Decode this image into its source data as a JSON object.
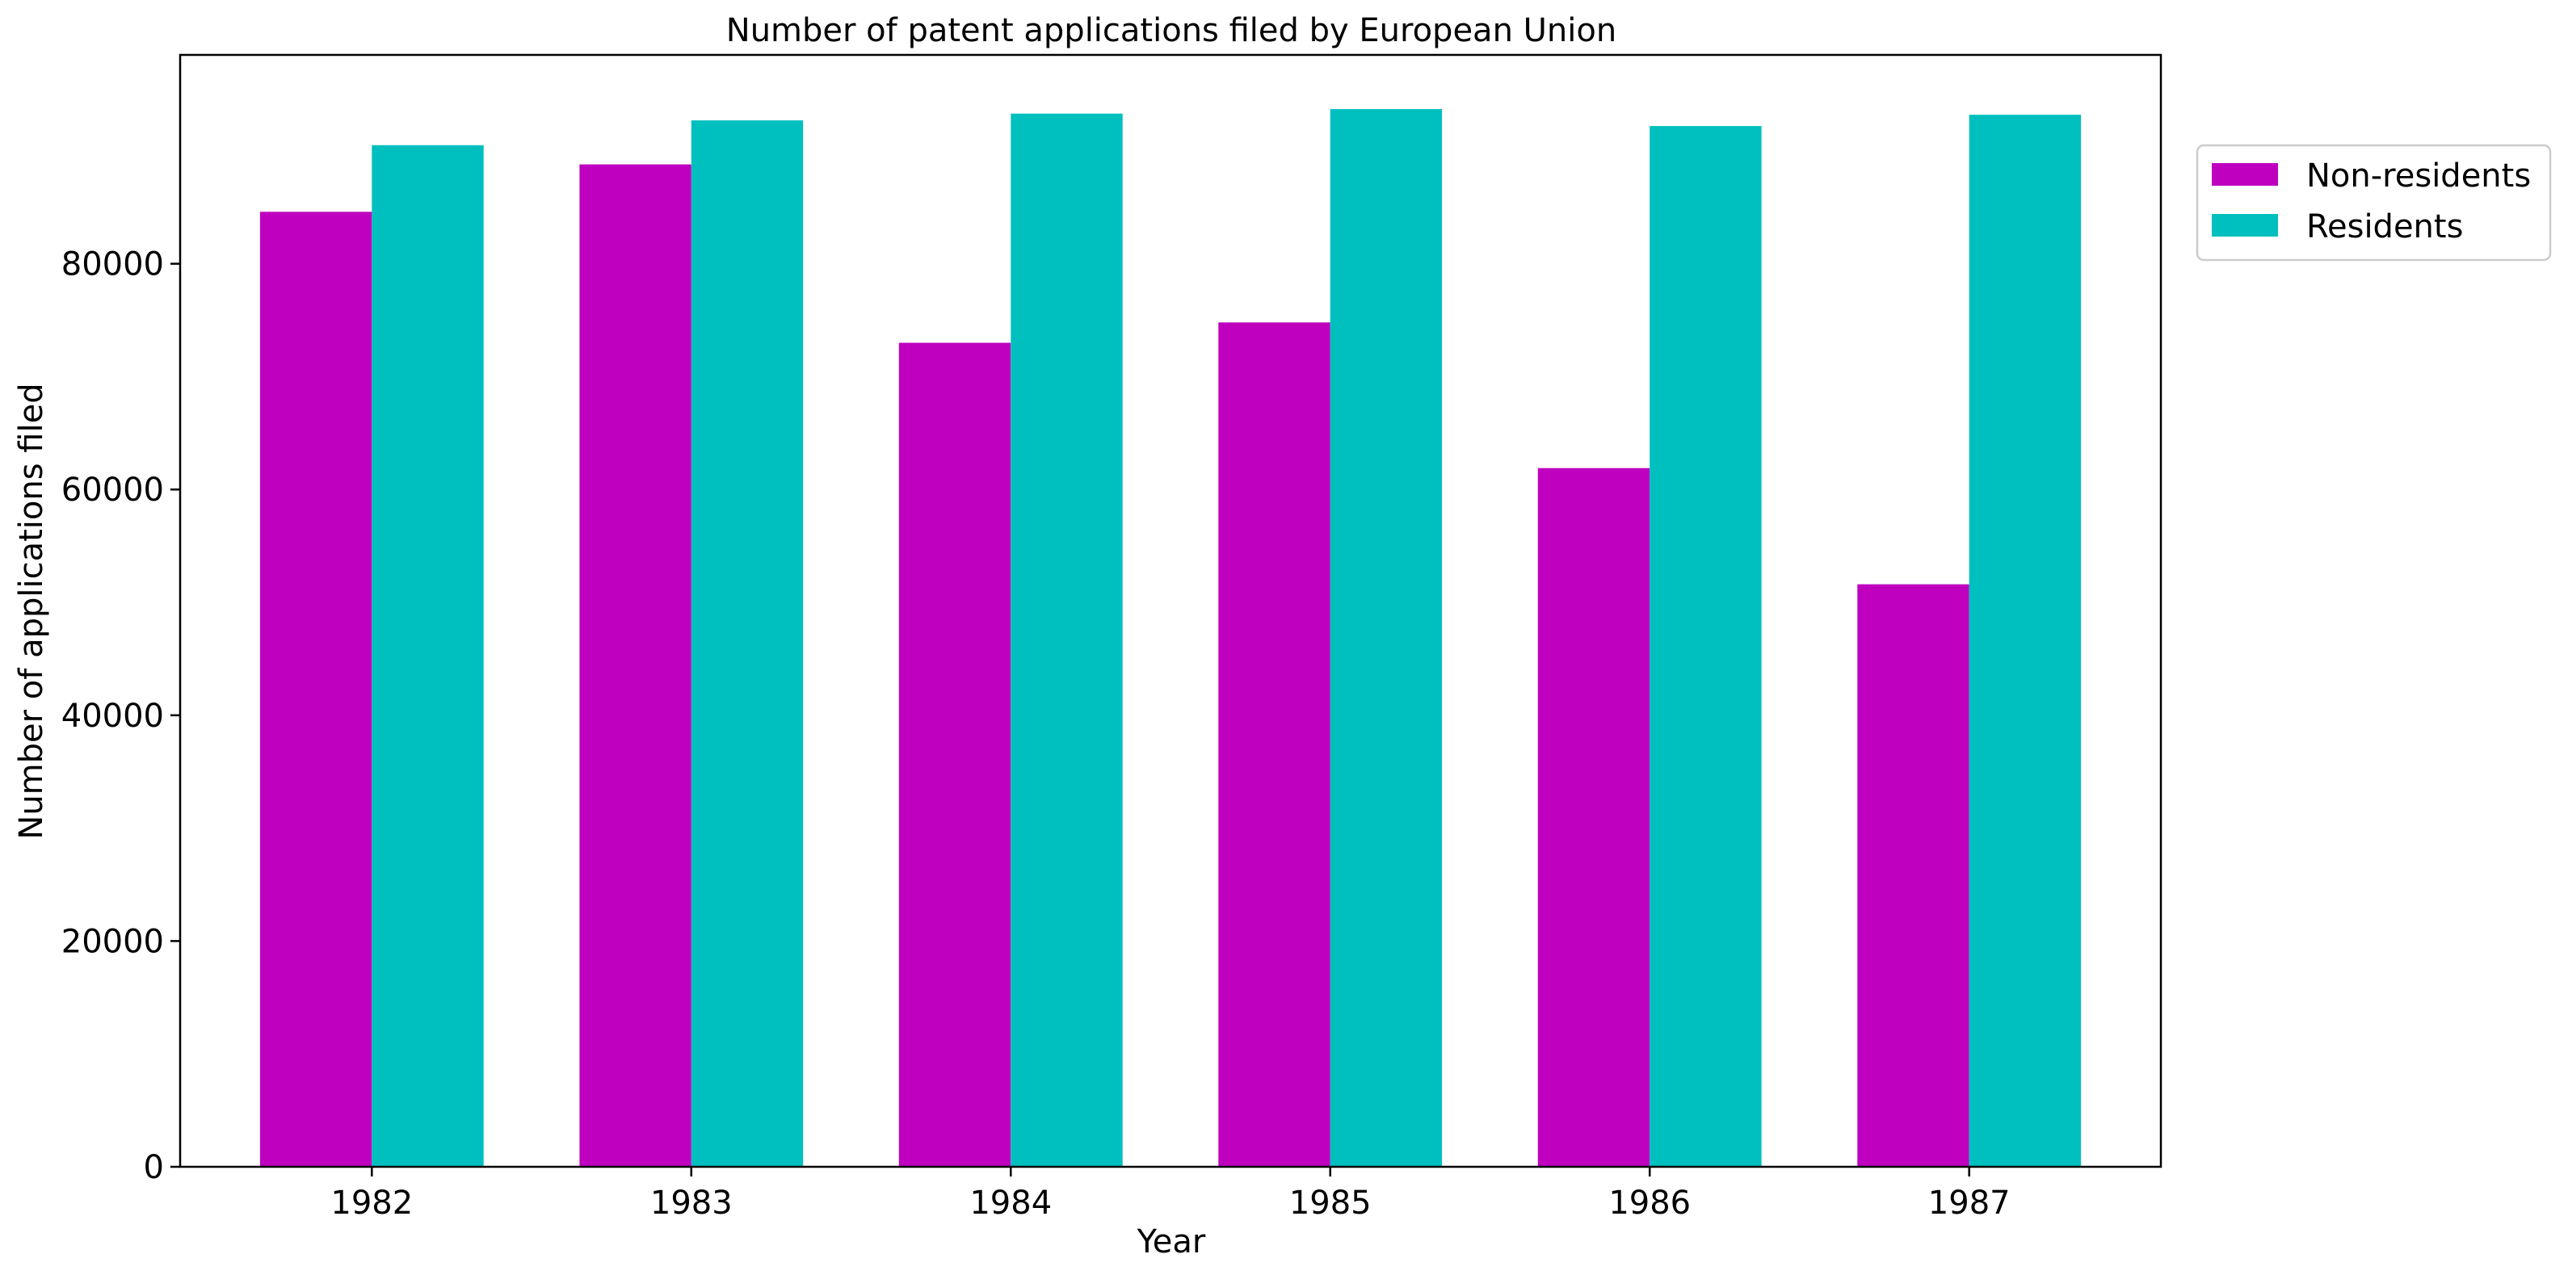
{
  "chart_data": {
    "type": "bar",
    "title": "Number of patent applications filed by European Union",
    "xlabel": "Year",
    "ylabel": "Number of applications filed",
    "categories": [
      "1982",
      "1983",
      "1984",
      "1985",
      "1986",
      "1987"
    ],
    "series": [
      {
        "name": "Non-residents",
        "color": "#bf00bf",
        "values": [
          84600,
          88800,
          73000,
          74800,
          61900,
          51600
        ]
      },
      {
        "name": "Residents",
        "color": "#00bfbf",
        "values": [
          90500,
          92700,
          93300,
          93700,
          92200,
          93200
        ]
      }
    ],
    "yticks": [
      0,
      20000,
      40000,
      60000,
      80000
    ],
    "ylim": [
      0,
      98500
    ],
    "grid": false,
    "legend_position": "outside right, top"
  }
}
